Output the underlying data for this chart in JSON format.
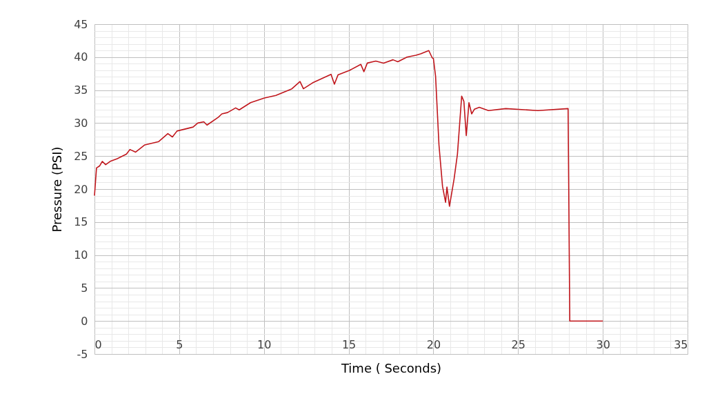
{
  "chart_data": {
    "type": "line",
    "xlabel": "Time ( Seconds)",
    "ylabel": "Pressure (PSI)",
    "xlim": [
      0,
      35
    ],
    "ylim": [
      -5,
      45
    ],
    "xticks": [
      0,
      {
        "value": 1,
        "label": null
      },
      {
        "value": 2,
        "label": null
      },
      {
        "value": 3,
        "label": null
      },
      {
        "value": 4,
        "label": null
      },
      5,
      {
        "value": 6,
        "label": null
      },
      {
        "value": 7,
        "label": null
      },
      {
        "value": 8,
        "label": null
      },
      {
        "value": 9,
        "label": null
      },
      10,
      {
        "value": 11,
        "label": null
      },
      {
        "value": 12,
        "label": null
      },
      {
        "value": 13,
        "label": null
      },
      {
        "value": 14,
        "label": null
      },
      15,
      {
        "value": 16,
        "label": null
      },
      {
        "value": 17,
        "label": null
      },
      {
        "value": 18,
        "label": null
      },
      {
        "value": 19,
        "label": null
      },
      20,
      {
        "value": 21,
        "label": null
      },
      {
        "value": 22,
        "label": null
      },
      {
        "value": 23,
        "label": null
      },
      {
        "value": 24,
        "label": null
      },
      25,
      {
        "value": 26,
        "label": null
      },
      {
        "value": 27,
        "label": null
      },
      {
        "value": 28,
        "label": null
      },
      {
        "value": 29,
        "label": null
      },
      30,
      {
        "value": 31,
        "label": null
      },
      {
        "value": 32,
        "label": null
      },
      {
        "value": 33,
        "label": null
      },
      {
        "value": 34,
        "label": null
      },
      35
    ],
    "yticks": [
      -5,
      {
        "value": -4,
        "label": null
      },
      {
        "value": -3,
        "label": null
      },
      {
        "value": -2,
        "label": null
      },
      {
        "value": -1,
        "label": null
      },
      0,
      {
        "value": 1,
        "label": null
      },
      {
        "value": 2,
        "label": null
      },
      {
        "value": 3,
        "label": null
      },
      {
        "value": 4,
        "label": null
      },
      5,
      {
        "value": 6,
        "label": null
      },
      {
        "value": 7,
        "label": null
      },
      {
        "value": 8,
        "label": null
      },
      {
        "value": 9,
        "label": null
      },
      10,
      {
        "value": 11,
        "label": null
      },
      {
        "value": 12,
        "label": null
      },
      {
        "value": 13,
        "label": null
      },
      {
        "value": 14,
        "label": null
      },
      15,
      {
        "value": 16,
        "label": null
      },
      {
        "value": 17,
        "label": null
      },
      {
        "value": 18,
        "label": null
      },
      {
        "value": 19,
        "label": null
      },
      20,
      {
        "value": 21,
        "label": null
      },
      {
        "value": 22,
        "label": null
      },
      {
        "value": 23,
        "label": null
      },
      {
        "value": 24,
        "label": null
      },
      25,
      {
        "value": 26,
        "label": null
      },
      {
        "value": 27,
        "label": null
      },
      {
        "value": 28,
        "label": null
      },
      {
        "value": 29,
        "label": null
      },
      30,
      {
        "value": 31,
        "label": null
      },
      {
        "value": 32,
        "label": null
      },
      {
        "value": 33,
        "label": null
      },
      {
        "value": 34,
        "label": null
      },
      35,
      {
        "value": 36,
        "label": null
      },
      {
        "value": 37,
        "label": null
      },
      {
        "value": 38,
        "label": null
      },
      {
        "value": 39,
        "label": null
      },
      40,
      {
        "value": 41,
        "label": null
      },
      {
        "value": 42,
        "label": null
      },
      {
        "value": 43,
        "label": null
      },
      {
        "value": 44,
        "label": null
      },
      45
    ],
    "grid": true,
    "marker": "none",
    "line_style": "solid",
    "series": [
      {
        "color": "#c0161c",
        "x": [
          0,
          0.12,
          0.3,
          0.46,
          0.66,
          0.93,
          1.34,
          1.89,
          2.09,
          2.43,
          2.97,
          3.79,
          4.33,
          4.6,
          4.87,
          5.82,
          6.09,
          6.45,
          6.64,
          7.31,
          7.52,
          7.85,
          8.33,
          8.54,
          9.21,
          10.03,
          10.71,
          11.65,
          12.13,
          12.33,
          12.87,
          13.96,
          14.16,
          14.37,
          15.05,
          15.72,
          15.9,
          16.1,
          16.6,
          17.06,
          17.62,
          17.9,
          18.44,
          18.98,
          19.25,
          19.73,
          19.93,
          20.0,
          20.13,
          20.33,
          20.54,
          20.72,
          20.8,
          20.95,
          21.22,
          21.42,
          21.67,
          21.8,
          21.94,
          22.1,
          22.26,
          22.42,
          22.71,
          23.25,
          24.27,
          26.17,
          27.95,
          28.05,
          30
        ],
        "values": [
          19.0,
          23.2,
          23.5,
          24.2,
          23.7,
          24.2,
          24.6,
          25.3,
          26.0,
          25.6,
          26.7,
          27.2,
          28.4,
          27.9,
          28.8,
          29.4,
          30.0,
          30.2,
          29.7,
          30.9,
          31.4,
          31.6,
          32.3,
          32.0,
          33.1,
          33.8,
          34.2,
          35.2,
          36.3,
          35.2,
          36.1,
          37.4,
          35.9,
          37.3,
          38.0,
          38.9,
          37.8,
          39.1,
          39.4,
          39.1,
          39.6,
          39.3,
          40.0,
          40.3,
          40.5,
          41.0,
          39.9,
          39.8,
          37.1,
          26.7,
          20.4,
          18.0,
          20.3,
          17.4,
          21.5,
          25.3,
          34.1,
          33.3,
          28.1,
          33.1,
          31.4,
          32.1,
          32.4,
          31.9,
          32.2,
          31.9,
          32.2,
          0,
          0
        ]
      }
    ]
  }
}
